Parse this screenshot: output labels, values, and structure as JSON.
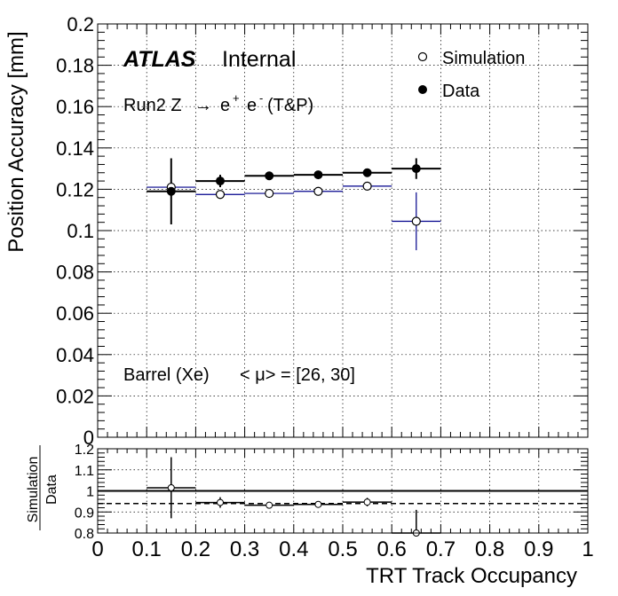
{
  "colors": {
    "simulation": "#00008b",
    "data": "#000000",
    "grid": "#000000",
    "background": "#ffffff"
  },
  "labels": {
    "atlas": "ATLAS",
    "internal": "Internal",
    "process_prefix": "Run2 Z",
    "process_arrow": "→",
    "process_e1": "e",
    "process_sup1": "+",
    "process_e2": "e",
    "process_sup2": "-",
    "process_tp": "(T&P)",
    "region": "Barrel (Xe)",
    "pileup": "< μ> = [26, 30]",
    "ratio_num": "Simulation",
    "ratio_den": "Data"
  },
  "chart_data": [
    {
      "type": "scatter",
      "panel": "main",
      "xlabel": "",
      "ylabel": "Position Accuracy [mm]",
      "xlim": [
        0,
        1
      ],
      "ylim": [
        0,
        0.2
      ],
      "grid": true,
      "legend_placement": "top-right",
      "x_ticks": [
        "0",
        "0.1",
        "0.2",
        "0.3",
        "0.4",
        "0.5",
        "0.6",
        "0.7",
        "0.8",
        "0.9",
        "1"
      ],
      "y_ticks": [
        "0",
        "0.02",
        "0.04",
        "0.06",
        "0.08",
        "0.1",
        "0.12",
        "0.14",
        "0.16",
        "0.18",
        "0.2"
      ],
      "series": [
        {
          "name": "Simulation",
          "marker": "open-circle",
          "points": [
            {
              "x": 0.15,
              "y": 0.121,
              "xerr": 0.05,
              "yerr": 0.0
            },
            {
              "x": 0.25,
              "y": 0.1175,
              "xerr": 0.05,
              "yerr": 0.0015
            },
            {
              "x": 0.35,
              "y": 0.118,
              "xerr": 0.05,
              "yerr": 0.001
            },
            {
              "x": 0.45,
              "y": 0.119,
              "xerr": 0.05,
              "yerr": 0.001
            },
            {
              "x": 0.55,
              "y": 0.1215,
              "xerr": 0.05,
              "yerr": 0.002
            },
            {
              "x": 0.65,
              "y": 0.1045,
              "xerr": 0.05,
              "yerr": 0.014
            }
          ]
        },
        {
          "name": "Data",
          "marker": "filled-circle",
          "points": [
            {
              "x": 0.15,
              "y": 0.119,
              "xerr": 0.05,
              "yerr": 0.016
            },
            {
              "x": 0.25,
              "y": 0.124,
              "xerr": 0.05,
              "yerr": 0.003
            },
            {
              "x": 0.35,
              "y": 0.1265,
              "xerr": 0.05,
              "yerr": 0.001
            },
            {
              "x": 0.45,
              "y": 0.127,
              "xerr": 0.05,
              "yerr": 0.001
            },
            {
              "x": 0.55,
              "y": 0.128,
              "xerr": 0.05,
              "yerr": 0.002
            },
            {
              "x": 0.65,
              "y": 0.13,
              "xerr": 0.05,
              "yerr": 0.005
            }
          ]
        }
      ]
    },
    {
      "type": "scatter",
      "panel": "ratio",
      "xlabel": "TRT Track Occupancy",
      "ylabel": "Simulation/Data",
      "xlim": [
        0,
        1
      ],
      "ylim": [
        0.8,
        1.2
      ],
      "grid": true,
      "x_ticks": [
        "0",
        "0.1",
        "0.2",
        "0.3",
        "0.4",
        "0.5",
        "0.6",
        "0.7",
        "0.8",
        "0.9",
        "1"
      ],
      "y_ticks": [
        "0.8",
        "0.9",
        "1",
        "1.1",
        "1.2"
      ],
      "reference_line": 1.0,
      "fit_line": 0.94,
      "points": [
        {
          "x": 0.15,
          "y": 1.015,
          "xerr": 0.05,
          "yerr": 0.145
        },
        {
          "x": 0.25,
          "y": 0.945,
          "xerr": 0.05,
          "yerr": 0.025
        },
        {
          "x": 0.35,
          "y": 0.932,
          "xerr": 0.05,
          "yerr": 0.008
        },
        {
          "x": 0.45,
          "y": 0.936,
          "xerr": 0.05,
          "yerr": 0.008
        },
        {
          "x": 0.55,
          "y": 0.947,
          "xerr": 0.05,
          "yerr": 0.02
        },
        {
          "x": 0.65,
          "y": 0.8,
          "xerr": 0.05,
          "yerr": 0.11
        }
      ]
    }
  ]
}
